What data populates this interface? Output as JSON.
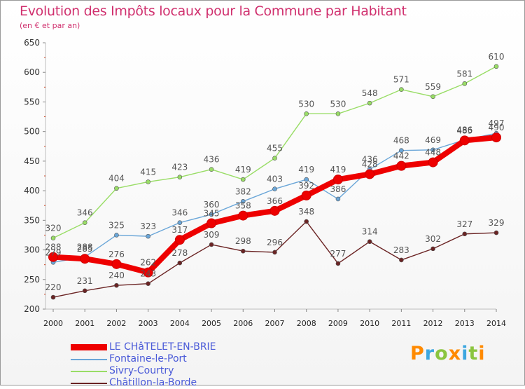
{
  "chart_data": {
    "type": "line",
    "title": "Evolution des Impôts locaux pour la Commune par Habitant",
    "subtitle": "(en € et par an)",
    "x": [
      "2000",
      "2001",
      "2002",
      "2003",
      "2004",
      "2005",
      "2006",
      "2007",
      "2008",
      "2009",
      "2010",
      "2011",
      "2012",
      "2013",
      "2014"
    ],
    "ylim": [
      200,
      650
    ],
    "yticks": [
      200,
      250,
      300,
      350,
      400,
      450,
      500,
      550,
      600,
      650
    ],
    "grid": false,
    "legend_position": "bottom-left",
    "series": [
      {
        "name": "LE CHâTELET-EN-BRIE",
        "color": "#ee0000",
        "values": [
          288,
          285,
          276,
          262,
          317,
          345,
          358,
          366,
          392,
          419,
          428,
          442,
          448,
          485,
          490
        ]
      },
      {
        "name": "Fontaine-le-Port",
        "color": "#6aa6d8",
        "values": [
          279,
          288,
          325,
          323,
          346,
          360,
          382,
          403,
          419,
          386,
          436,
          468,
          469,
          486,
          497
        ]
      },
      {
        "name": "Sivry-Courtry",
        "color": "#99dd66",
        "values": [
          320,
          346,
          404,
          415,
          423,
          436,
          419,
          455,
          530,
          530,
          548,
          571,
          559,
          581,
          610
        ]
      },
      {
        "name": "Châtillon-la-Borde",
        "color": "#6b2424",
        "values": [
          220,
          231,
          240,
          243,
          278,
          309,
          298,
          296,
          348,
          277,
          314,
          283,
          302,
          327,
          329
        ]
      }
    ]
  },
  "logo": {
    "letters": [
      "P",
      "r",
      "o",
      "x",
      "i",
      "t",
      "i"
    ],
    "colors": [
      "#ff8a00",
      "#3da7e0",
      "#8bc53f",
      "#ff8a00",
      "#3da7e0",
      "#8bc53f",
      "#ff8a00"
    ]
  }
}
